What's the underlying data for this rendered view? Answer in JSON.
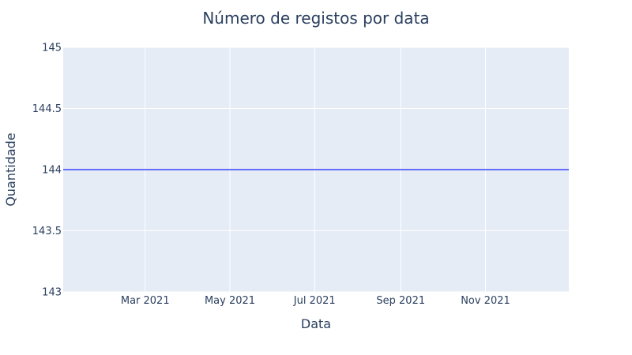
{
  "chart_data": {
    "type": "line",
    "title": "Número de registos por data",
    "xlabel": "Data",
    "ylabel": "Quantidade",
    "x_range": [
      "2021-01-01",
      "2021-12-31"
    ],
    "ylim": [
      143,
      145
    ],
    "x_ticks": [
      {
        "value": "2021-03-01",
        "label": "Mar 2021"
      },
      {
        "value": "2021-05-01",
        "label": "May 2021"
      },
      {
        "value": "2021-07-01",
        "label": "Jul 2021"
      },
      {
        "value": "2021-09-01",
        "label": "Sep 2021"
      },
      {
        "value": "2021-11-01",
        "label": "Nov 2021"
      }
    ],
    "y_ticks": [
      {
        "value": 143,
        "label": "143"
      },
      {
        "value": 143.5,
        "label": "143.5"
      },
      {
        "value": 144,
        "label": "144"
      },
      {
        "value": 144.5,
        "label": "144.5"
      },
      {
        "value": 145,
        "label": "145"
      }
    ],
    "grid": true,
    "series": [
      {
        "x": [
          "2021-01-01",
          "2021-12-31"
        ],
        "y": [
          144,
          144
        ]
      }
    ],
    "colors": {
      "plot_bg": "#e5ecf6",
      "grid": "#ffffff",
      "line": "#636efa",
      "text": "#2a3f5f"
    }
  }
}
